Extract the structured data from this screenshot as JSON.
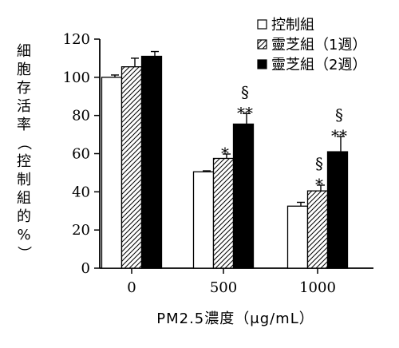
{
  "chart_data": {
    "type": "bar",
    "categories": [
      "0",
      "500",
      "1000"
    ],
    "series": [
      {
        "name": "控制組",
        "pattern": "open",
        "values": [
          100,
          50.5,
          32.5
        ],
        "errors": [
          1.2,
          0.5,
          2
        ]
      },
      {
        "name": "靈芝組（1週）",
        "pattern": "hatched",
        "values": [
          105.5,
          57.5,
          40.5
        ],
        "errors": [
          4.5,
          2.3,
          3
        ]
      },
      {
        "name": "靈芝組（2週）",
        "pattern": "solid",
        "values": [
          111,
          75.5,
          61
        ],
        "errors": [
          2.5,
          5.5,
          8
        ]
      }
    ],
    "annotations": [
      {
        "category": "500",
        "series": 1,
        "marks": [
          "*"
        ]
      },
      {
        "category": "500",
        "series": 2,
        "marks": [
          "§",
          "**"
        ]
      },
      {
        "category": "1000",
        "series": 1,
        "marks": [
          "§",
          "*"
        ]
      },
      {
        "category": "1000",
        "series": 2,
        "marks": [
          "§",
          "**"
        ]
      }
    ],
    "ylabel": "細胞存活率（控制組的%）",
    "xlabel": "PM2.5濃度（μg/mL）",
    "ylim": [
      0,
      120
    ],
    "yticks": [
      "0",
      "20",
      "40",
      "60",
      "80",
      "100",
      "120"
    ],
    "grid": false,
    "legend_position": "top-right",
    "colors": {
      "bar_stroke": "#000000",
      "open_fill": "#ffffff",
      "solid_fill": "#000000"
    }
  }
}
